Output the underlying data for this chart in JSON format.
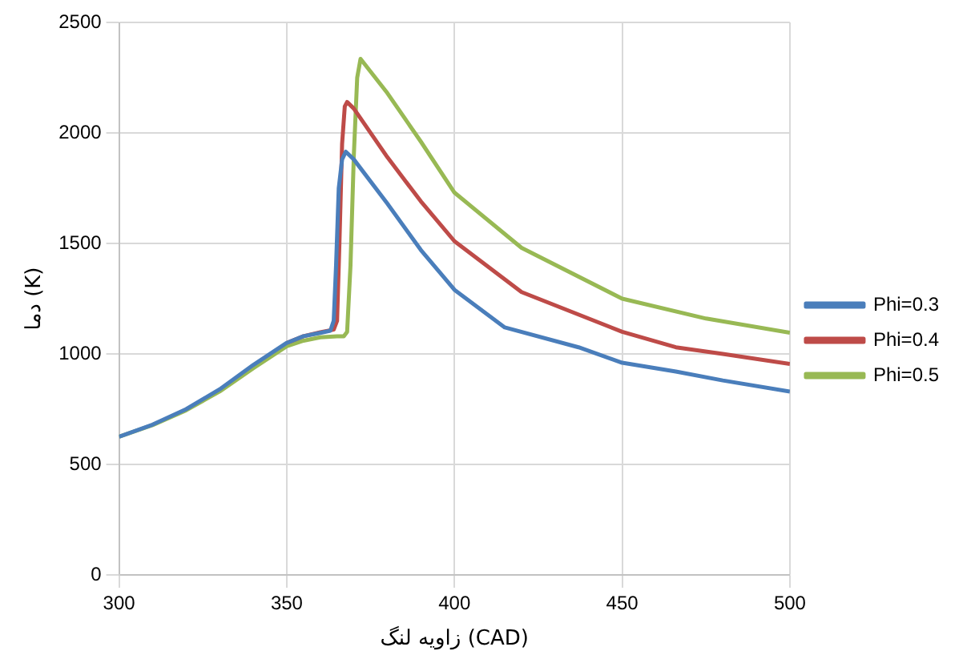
{
  "chart_data": {
    "type": "line",
    "xlabel": "زاویه لنگ (CAD)",
    "ylabel": "دما (K)",
    "xlim": [
      300,
      500
    ],
    "xticks": [
      300,
      350,
      400,
      450,
      500
    ],
    "ylim": [
      0,
      2500
    ],
    "yticks": [
      0,
      500,
      1000,
      1500,
      2000,
      2500
    ],
    "grid": true,
    "legend": "right",
    "marker": "none",
    "line_style": "solid",
    "series": [
      {
        "name": "Phi=0.3",
        "color": "#4a7ebb",
        "x": [
          300,
          310,
          320,
          330,
          340,
          350,
          355,
          360,
          363,
          364,
          364.7,
          365.5,
          366.5,
          367.6,
          370,
          380,
          390,
          400,
          415,
          437,
          450,
          466,
          480,
          500
        ],
        "values": [
          625,
          680,
          750,
          840,
          950,
          1050,
          1080,
          1095,
          1105,
          1150,
          1400,
          1750,
          1880,
          1915,
          1880,
          1680,
          1470,
          1290,
          1120,
          1030,
          960,
          920,
          880,
          830
        ]
      },
      {
        "name": "Phi=0.4",
        "color": "#be4b48",
        "x": [
          350,
          355,
          360,
          364,
          365,
          365.7,
          366.5,
          367.3,
          368,
          370,
          380,
          390,
          400,
          420,
          450,
          466,
          480,
          500
        ],
        "values": [
          1050,
          1080,
          1098,
          1110,
          1150,
          1500,
          1950,
          2120,
          2140,
          2110,
          1890,
          1690,
          1510,
          1280,
          1100,
          1030,
          1000,
          955
        ]
      },
      {
        "name": "Phi=0.5",
        "color": "#98b954",
        "x": [
          300,
          310,
          320,
          330,
          340,
          350,
          355,
          360,
          365,
          367,
          368,
          369,
          370,
          371,
          372,
          380,
          390,
          400,
          420,
          450,
          475,
          500
        ],
        "values": [
          625,
          678,
          745,
          830,
          935,
          1035,
          1060,
          1075,
          1080,
          1080,
          1100,
          1400,
          1900,
          2250,
          2335,
          2180,
          1960,
          1730,
          1480,
          1250,
          1160,
          1096
        ]
      }
    ]
  }
}
